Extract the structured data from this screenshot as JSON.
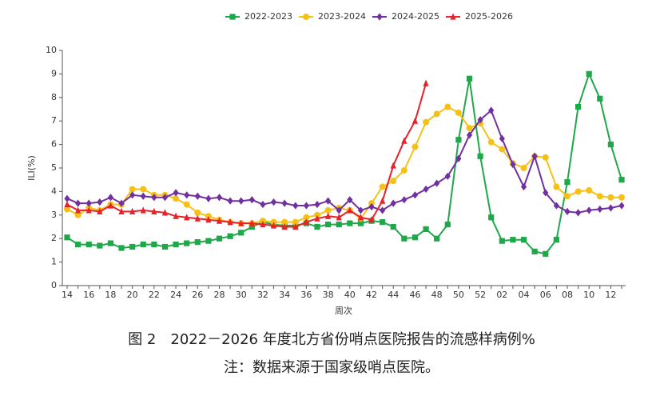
{
  "chart_data": {
    "type": "line",
    "y_label": "ILI(%)",
    "x_label": "周次",
    "caption": "图 2　2022－2026 年度北方省份哨点医院报告的流感样病例%",
    "note": "注：数据来源于国家级哨点医院。",
    "categories": [
      "14",
      null,
      "16",
      null,
      "18",
      null,
      "20",
      null,
      "22",
      null,
      "24",
      null,
      "26",
      null,
      "28",
      null,
      "30",
      null,
      "32",
      null,
      "34",
      null,
      "36",
      null,
      "38",
      null,
      "40",
      null,
      "42",
      null,
      "44",
      null,
      "46",
      null,
      "48",
      null,
      "50",
      null,
      "52",
      null,
      "02",
      null,
      "04",
      null,
      "06",
      null,
      "08",
      null,
      "10",
      null,
      "12",
      null
    ],
    "ylim": [
      0,
      10
    ],
    "yticks": [
      0,
      1,
      2,
      3,
      4,
      5,
      6,
      7,
      8,
      9,
      10
    ],
    "series": [
      {
        "name": "2022-2023",
        "color": "#1ea84a",
        "values": [
          2.05,
          1.75,
          1.75,
          1.7,
          1.8,
          1.6,
          1.65,
          1.75,
          1.75,
          1.65,
          1.75,
          1.8,
          1.85,
          1.9,
          2.0,
          2.1,
          2.25,
          2.5,
          2.7,
          2.6,
          2.55,
          2.55,
          2.65,
          2.5,
          2.6,
          2.6,
          2.65,
          2.65,
          2.75,
          2.7,
          2.5,
          2.0,
          2.05,
          2.4,
          2.0,
          2.6,
          6.2,
          8.8,
          5.5,
          2.9,
          1.9,
          1.95,
          1.95,
          1.45,
          1.35,
          1.95,
          4.4,
          7.6,
          9.0,
          7.95,
          6.0,
          4.5
        ]
      },
      {
        "name": "2023-2024",
        "color": "#f5c118",
        "values": [
          3.25,
          3.0,
          3.3,
          3.2,
          3.45,
          3.45,
          4.1,
          4.1,
          3.85,
          3.85,
          3.7,
          3.45,
          3.1,
          2.95,
          2.8,
          2.7,
          2.65,
          2.65,
          2.75,
          2.7,
          2.7,
          2.7,
          2.9,
          3.0,
          3.2,
          3.3,
          3.2,
          2.85,
          3.5,
          4.2,
          4.45,
          4.9,
          5.9,
          6.95,
          7.3,
          7.6,
          7.35,
          6.7,
          6.9,
          6.1,
          5.8,
          5.2,
          5.0,
          5.5,
          5.45,
          4.2,
          3.8,
          4.0,
          4.05,
          3.8,
          3.75,
          3.75
        ]
      },
      {
        "name": "2024-2025",
        "color": "#7030a0",
        "values": [
          3.7,
          3.5,
          3.5,
          3.55,
          3.75,
          3.5,
          3.85,
          3.8,
          3.75,
          3.75,
          3.95,
          3.85,
          3.8,
          3.7,
          3.75,
          3.6,
          3.6,
          3.65,
          3.45,
          3.55,
          3.5,
          3.4,
          3.4,
          3.45,
          3.6,
          3.2,
          3.65,
          3.2,
          3.35,
          3.2,
          3.5,
          3.65,
          3.85,
          4.1,
          4.35,
          4.65,
          5.4,
          6.4,
          7.05,
          7.45,
          6.25,
          5.15,
          4.2,
          5.5,
          3.95,
          3.4,
          3.15,
          3.1,
          3.2,
          3.25,
          3.3,
          3.4
        ]
      },
      {
        "name": "2025-2026",
        "color": "#e8212a",
        "values": [
          3.45,
          3.2,
          3.2,
          3.15,
          3.4,
          3.15,
          3.15,
          3.2,
          3.15,
          3.1,
          2.95,
          2.9,
          2.85,
          2.8,
          2.75,
          2.7,
          2.65,
          2.65,
          2.6,
          2.55,
          2.5,
          2.5,
          2.7,
          2.85,
          2.95,
          2.9,
          3.2,
          2.9,
          2.8,
          3.6,
          5.1,
          6.15,
          7.0,
          8.6,
          null,
          null,
          null,
          null,
          null,
          null,
          null,
          null,
          null,
          null,
          null,
          null,
          null,
          null,
          null,
          null,
          null,
          null
        ]
      }
    ]
  }
}
